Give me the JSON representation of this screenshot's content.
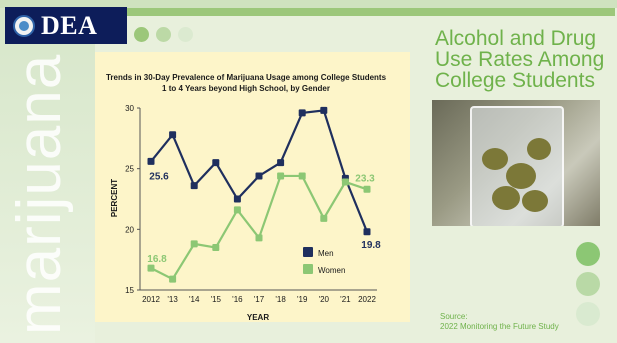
{
  "logo": {
    "text": "DEA"
  },
  "side_word": "marijuana",
  "slide_title": "Alcohol and Drug Use Rates Among College Students",
  "source": {
    "label": "Source:",
    "text": "2022 Monitoring the Future Study"
  },
  "colors": {
    "men": "#1f2f5e",
    "women": "#8cc774",
    "accent": "#6fb24b"
  },
  "chart_data": {
    "type": "line",
    "title": "Trends in 30-Day Prevalence of Marijuana Usage among College Students",
    "subtitle": "1 to 4 Years beyond High School, by Gender",
    "xlabel": "YEAR",
    "ylabel": "PERCENT",
    "ylim": [
      15,
      30
    ],
    "yticks": [
      15,
      20,
      25,
      30
    ],
    "categories": [
      "2012",
      "'13",
      "'14",
      "'15",
      "'16",
      "'17",
      "'18",
      "'19",
      "'20",
      "'21",
      "2022"
    ],
    "series": [
      {
        "name": "Men",
        "values": [
          25.6,
          27.8,
          23.6,
          25.5,
          22.5,
          24.4,
          25.5,
          29.6,
          29.8,
          24.2,
          19.8
        ]
      },
      {
        "name": "Women",
        "values": [
          16.8,
          15.9,
          18.8,
          18.5,
          21.6,
          19.3,
          24.4,
          24.4,
          20.9,
          23.9,
          23.3
        ]
      }
    ],
    "data_labels": [
      {
        "series": "Men",
        "index": 0,
        "text": "25.6"
      },
      {
        "series": "Men",
        "index": 10,
        "text": "19.8"
      },
      {
        "series": "Women",
        "index": 0,
        "text": "16.8"
      },
      {
        "series": "Women",
        "index": 10,
        "text": "23.3"
      }
    ],
    "legend_position": "lower-right",
    "grid": false
  }
}
